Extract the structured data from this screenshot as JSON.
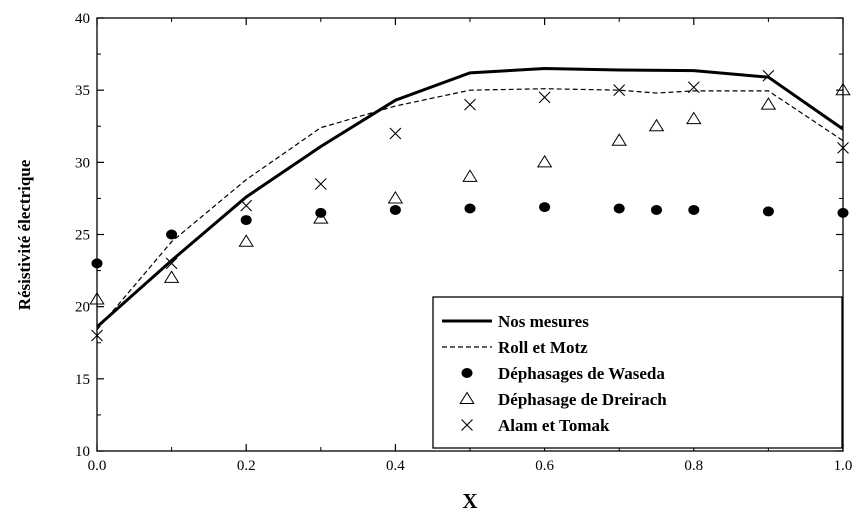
{
  "chart_data": {
    "type": "line",
    "xlabel": "X",
    "ylabel": "Résistivité électrique",
    "xlim": [
      0.0,
      1.0
    ],
    "ylim": [
      10,
      40
    ],
    "x_ticks": [
      "0.0",
      "0.2",
      "0.4",
      "0.6",
      "0.8",
      "1.0"
    ],
    "y_ticks": [
      "10",
      "15",
      "20",
      "25",
      "30",
      "35",
      "40"
    ],
    "grid": false,
    "legend_position": "bottom-right",
    "series": [
      {
        "name": "Nos mesures",
        "style": "solid-line",
        "x": [
          0.0,
          0.1,
          0.2,
          0.3,
          0.4,
          0.5,
          0.6,
          0.7,
          0.8,
          0.9,
          1.0
        ],
        "y": [
          18.6,
          23.2,
          27.6,
          31.1,
          34.3,
          36.2,
          36.5,
          36.4,
          36.35,
          35.9,
          32.3
        ]
      },
      {
        "name": "Roll et Motz",
        "style": "dashed-line",
        "x": [
          0.0,
          0.1,
          0.2,
          0.3,
          0.4,
          0.5,
          0.6,
          0.7,
          0.75,
          0.8,
          0.9,
          1.0
        ],
        "y": [
          18.4,
          24.5,
          28.8,
          32.4,
          33.9,
          35.0,
          35.1,
          35.0,
          34.8,
          34.95,
          34.95,
          31.5
        ]
      },
      {
        "name": "Déphasages de Waseda",
        "style": "filled-circle",
        "x": [
          0.0,
          0.1,
          0.2,
          0.3,
          0.4,
          0.5,
          0.6,
          0.7,
          0.75,
          0.8,
          0.9,
          1.0
        ],
        "y": [
          23.0,
          25.0,
          26.0,
          26.5,
          26.7,
          26.8,
          26.9,
          26.8,
          26.7,
          26.7,
          26.6,
          26.5
        ]
      },
      {
        "name": "Déphasage de Dreirach",
        "style": "open-triangle",
        "x": [
          0.0,
          0.1,
          0.2,
          0.3,
          0.4,
          0.5,
          0.6,
          0.7,
          0.75,
          0.8,
          0.9,
          1.0
        ],
        "y": [
          20.5,
          22.0,
          24.5,
          26.1,
          27.5,
          29.0,
          30.0,
          31.5,
          32.5,
          33.0,
          34.0,
          35.0
        ]
      },
      {
        "name": "Alam et Tomak",
        "style": "x-cross",
        "x": [
          0.0,
          0.1,
          0.2,
          0.3,
          0.4,
          0.5,
          0.6,
          0.7,
          0.8,
          0.9,
          1.0
        ],
        "y": [
          18.0,
          23.0,
          27.0,
          28.5,
          32.0,
          34.0,
          34.5,
          35.0,
          35.2,
          36.0,
          31.0
        ]
      }
    ]
  }
}
